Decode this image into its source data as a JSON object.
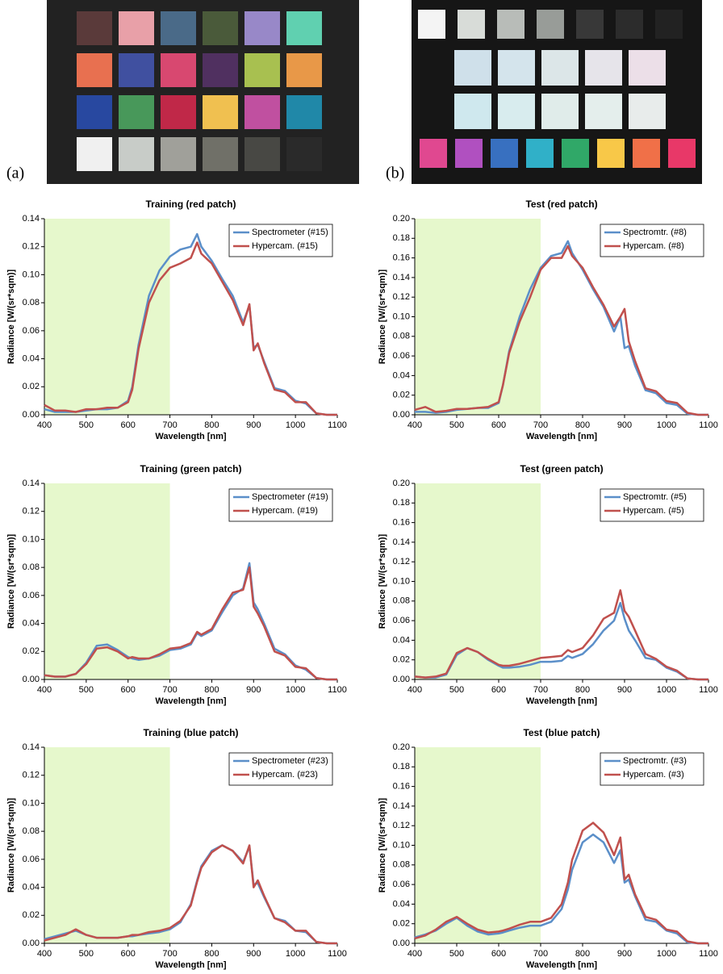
{
  "figure": {
    "label_a": "(a)",
    "label_b": "(b)"
  },
  "chart_data": [
    {
      "type": "line",
      "title": "Training (red patch)",
      "x_label": "Wavelength [nm]",
      "y_label": "Radiance [W/(sr*sqm)]",
      "shaded_range": [
        400,
        700
      ],
      "shaded_color": "#e6f8cc",
      "legend": "upper right",
      "x": [
        400,
        425,
        450,
        475,
        500,
        525,
        550,
        575,
        600,
        610,
        625,
        650,
        675,
        700,
        725,
        750,
        765,
        775,
        800,
        825,
        850,
        875,
        890,
        900,
        910,
        925,
        950,
        975,
        1000,
        1025,
        1050,
        1075,
        1100
      ],
      "series": [
        {
          "name": "Spectrometer (#15)",
          "color": "#5b8fc9",
          "values": [
            0.004,
            0.002,
            0.002,
            0.002,
            0.003,
            0.004,
            0.004,
            0.005,
            0.01,
            0.02,
            0.05,
            0.085,
            0.103,
            0.113,
            0.118,
            0.12,
            0.129,
            0.12,
            0.11,
            0.097,
            0.085,
            0.066,
            0.078,
            0.048,
            0.05,
            0.038,
            0.019,
            0.017,
            0.01,
            0.008,
            0.001,
            0,
            0
          ]
        },
        {
          "name": "Hypercam. (#15)",
          "color": "#c0504d",
          "values": [
            0.007,
            0.003,
            0.003,
            0.002,
            0.004,
            0.004,
            0.005,
            0.005,
            0.009,
            0.018,
            0.047,
            0.08,
            0.096,
            0.105,
            0.108,
            0.112,
            0.123,
            0.115,
            0.108,
            0.095,
            0.082,
            0.064,
            0.079,
            0.046,
            0.051,
            0.037,
            0.018,
            0.016,
            0.009,
            0.009,
            0.001,
            0,
            0
          ]
        }
      ],
      "xlim": [
        400,
        1100
      ],
      "xticks": [
        400,
        500,
        600,
        700,
        800,
        900,
        1000,
        1100
      ],
      "ylim": [
        0,
        0.14
      ],
      "yticks": [
        {
          "value": 0,
          "label": "0.00"
        },
        {
          "value": 0.02,
          "label": "0.02"
        },
        {
          "value": 0.04,
          "label": "0.04"
        },
        {
          "value": 0.06,
          "label": "0.06"
        },
        {
          "value": 0.08,
          "label": "0.08"
        },
        {
          "value": 0.1,
          "label": "0.10"
        },
        {
          "value": 0.12,
          "label": "0.12"
        },
        {
          "value": 0.14,
          "label": "0.14"
        }
      ]
    },
    {
      "type": "line",
      "title": "Test (red patch)",
      "x_label": "Wavelength [nm]",
      "y_label": "Radiance [W/(sr*sqm)]",
      "shaded_range": [
        400,
        700
      ],
      "shaded_color": "#e6f8cc",
      "legend": "upper right",
      "x": [
        400,
        425,
        450,
        475,
        500,
        525,
        550,
        575,
        600,
        610,
        625,
        650,
        675,
        700,
        725,
        750,
        765,
        775,
        800,
        825,
        850,
        875,
        890,
        900,
        910,
        925,
        950,
        975,
        1000,
        1025,
        1050,
        1075,
        1100
      ],
      "series": [
        {
          "name": "Spectromtr. (#8)",
          "color": "#5b8fc9",
          "values": [
            0.003,
            0.003,
            0.002,
            0.003,
            0.005,
            0.006,
            0.007,
            0.007,
            0.012,
            0.03,
            0.065,
            0.1,
            0.128,
            0.15,
            0.162,
            0.165,
            0.177,
            0.165,
            0.148,
            0.128,
            0.11,
            0.085,
            0.1,
            0.068,
            0.07,
            0.05,
            0.025,
            0.022,
            0.012,
            0.01,
            0.001,
            0,
            0
          ]
        },
        {
          "name": "Hypercam. (#8)",
          "color": "#c0504d",
          "values": [
            0.005,
            0.008,
            0.003,
            0.004,
            0.006,
            0.006,
            0.007,
            0.008,
            0.013,
            0.03,
            0.063,
            0.095,
            0.12,
            0.148,
            0.16,
            0.16,
            0.172,
            0.162,
            0.15,
            0.13,
            0.112,
            0.09,
            0.1,
            0.108,
            0.075,
            0.055,
            0.027,
            0.024,
            0.014,
            0.012,
            0.002,
            0,
            0
          ]
        }
      ],
      "xlim": [
        400,
        1100
      ],
      "xticks": [
        400,
        500,
        600,
        700,
        800,
        900,
        1000,
        1100
      ],
      "ylim": [
        0,
        0.2
      ],
      "yticks": [
        {
          "value": 0,
          "label": "0.00"
        },
        {
          "value": 0.02,
          "label": "0.02"
        },
        {
          "value": 0.04,
          "label": "0.04"
        },
        {
          "value": 0.06,
          "label": "0.06"
        },
        {
          "value": 0.08,
          "label": "0.08"
        },
        {
          "value": 0.1,
          "label": "0.10"
        },
        {
          "value": 0.12,
          "label": "0.12"
        },
        {
          "value": 0.14,
          "label": "0.14"
        },
        {
          "value": 0.16,
          "label": "0.16"
        },
        {
          "value": 0.18,
          "label": "0.18"
        },
        {
          "value": 0.2,
          "label": "0.20"
        }
      ]
    },
    {
      "type": "line",
      "title": "Training (green patch)",
      "x_label": "Wavelength [nm]",
      "y_label": "Radiance [W/(sr*sqm)]",
      "shaded_range": [
        400,
        700
      ],
      "shaded_color": "#e6f8cc",
      "legend": "upper right",
      "x": [
        400,
        425,
        450,
        475,
        500,
        525,
        550,
        575,
        600,
        610,
        625,
        650,
        675,
        700,
        725,
        750,
        765,
        775,
        800,
        825,
        850,
        875,
        890,
        900,
        910,
        925,
        950,
        975,
        1000,
        1025,
        1050,
        1075,
        1100
      ],
      "series": [
        {
          "name": "Spectrometer (#19)",
          "color": "#5b8fc9",
          "values": [
            0.003,
            0.002,
            0.002,
            0.004,
            0.012,
            0.024,
            0.025,
            0.021,
            0.016,
            0.015,
            0.014,
            0.015,
            0.017,
            0.021,
            0.022,
            0.025,
            0.033,
            0.031,
            0.035,
            0.048,
            0.06,
            0.065,
            0.083,
            0.055,
            0.05,
            0.04,
            0.022,
            0.018,
            0.01,
            0.007,
            0.001,
            0,
            0
          ]
        },
        {
          "name": "Hypercam. (#19)",
          "color": "#c0504d",
          "values": [
            0.003,
            0.002,
            0.002,
            0.004,
            0.011,
            0.022,
            0.023,
            0.02,
            0.015,
            0.016,
            0.015,
            0.015,
            0.018,
            0.022,
            0.023,
            0.026,
            0.034,
            0.032,
            0.036,
            0.05,
            0.062,
            0.064,
            0.08,
            0.052,
            0.047,
            0.038,
            0.02,
            0.017,
            0.009,
            0.008,
            0.001,
            0,
            0
          ]
        }
      ],
      "xlim": [
        400,
        1100
      ],
      "xticks": [
        400,
        500,
        600,
        700,
        800,
        900,
        1000,
        1100
      ],
      "ylim": [
        0,
        0.14
      ],
      "yticks": [
        {
          "value": 0,
          "label": "0.00"
        },
        {
          "value": 0.02,
          "label": "0.02"
        },
        {
          "value": 0.04,
          "label": "0.04"
        },
        {
          "value": 0.06,
          "label": "0.06"
        },
        {
          "value": 0.08,
          "label": "0.08"
        },
        {
          "value": 0.1,
          "label": "0.10"
        },
        {
          "value": 0.12,
          "label": "0.12"
        },
        {
          "value": 0.14,
          "label": "0.14"
        }
      ]
    },
    {
      "type": "line",
      "title": "Test (green patch)",
      "x_label": "Wavelength [nm]",
      "y_label": "Radiance [W/(sr*sqm)]",
      "shaded_range": [
        400,
        700
      ],
      "shaded_color": "#e6f8cc",
      "legend": "upper right",
      "x": [
        400,
        425,
        450,
        475,
        500,
        525,
        550,
        575,
        600,
        610,
        625,
        650,
        675,
        700,
        725,
        750,
        765,
        775,
        800,
        825,
        850,
        875,
        890,
        900,
        910,
        925,
        950,
        975,
        1000,
        1025,
        1050,
        1075,
        1100
      ],
      "series": [
        {
          "name": "Spectromtr. (#5)",
          "color": "#5b8fc9",
          "values": [
            0.003,
            0.002,
            0.002,
            0.005,
            0.025,
            0.032,
            0.028,
            0.02,
            0.014,
            0.012,
            0.012,
            0.013,
            0.015,
            0.018,
            0.018,
            0.019,
            0.024,
            0.022,
            0.026,
            0.036,
            0.05,
            0.06,
            0.078,
            0.062,
            0.05,
            0.04,
            0.022,
            0.02,
            0.012,
            0.008,
            0.001,
            0,
            0
          ]
        },
        {
          "name": "Hypercam. (#5)",
          "color": "#c0504d",
          "values": [
            0.003,
            0.002,
            0.003,
            0.006,
            0.027,
            0.032,
            0.028,
            0.021,
            0.015,
            0.014,
            0.014,
            0.016,
            0.019,
            0.022,
            0.023,
            0.024,
            0.03,
            0.028,
            0.032,
            0.045,
            0.062,
            0.068,
            0.091,
            0.07,
            0.064,
            0.05,
            0.026,
            0.021,
            0.013,
            0.009,
            0.001,
            0,
            0
          ]
        }
      ],
      "xlim": [
        400,
        1100
      ],
      "xticks": [
        400,
        500,
        600,
        700,
        800,
        900,
        1000,
        1100
      ],
      "ylim": [
        0,
        0.2
      ],
      "yticks": [
        {
          "value": 0,
          "label": "0.00"
        },
        {
          "value": 0.02,
          "label": "0.02"
        },
        {
          "value": 0.04,
          "label": "0.04"
        },
        {
          "value": 0.06,
          "label": "0.06"
        },
        {
          "value": 0.08,
          "label": "0.08"
        },
        {
          "value": 0.1,
          "label": "0.10"
        },
        {
          "value": 0.12,
          "label": "0.12"
        },
        {
          "value": 0.14,
          "label": "0.14"
        },
        {
          "value": 0.16,
          "label": "0.16"
        },
        {
          "value": 0.18,
          "label": "0.18"
        },
        {
          "value": 0.2,
          "label": "0.20"
        }
      ]
    },
    {
      "type": "line",
      "title": "Training (blue patch)",
      "x_label": "Wavelength [nm]",
      "y_label": "Radiance [W/(sr*sqm)]",
      "shaded_range": [
        400,
        700
      ],
      "shaded_color": "#e6f8cc",
      "legend": "upper right",
      "x": [
        400,
        425,
        450,
        475,
        500,
        525,
        550,
        575,
        600,
        610,
        625,
        650,
        675,
        700,
        725,
        750,
        765,
        775,
        800,
        825,
        850,
        875,
        890,
        900,
        910,
        925,
        950,
        975,
        1000,
        1025,
        1050,
        1075,
        1100
      ],
      "series": [
        {
          "name": "Spectrometer (#23)",
          "color": "#5b8fc9",
          "values": [
            0.003,
            0.005,
            0.007,
            0.009,
            0.006,
            0.004,
            0.004,
            0.004,
            0.005,
            0.005,
            0.006,
            0.007,
            0.008,
            0.01,
            0.015,
            0.028,
            0.045,
            0.055,
            0.066,
            0.07,
            0.066,
            0.058,
            0.069,
            0.042,
            0.043,
            0.033,
            0.018,
            0.016,
            0.009,
            0.008,
            0.001,
            0,
            0
          ]
        },
        {
          "name": "Hypercam. (#23)",
          "color": "#c0504d",
          "values": [
            0.002,
            0.004,
            0.006,
            0.01,
            0.006,
            0.004,
            0.004,
            0.004,
            0.005,
            0.006,
            0.006,
            0.008,
            0.009,
            0.011,
            0.016,
            0.027,
            0.044,
            0.054,
            0.065,
            0.07,
            0.066,
            0.057,
            0.07,
            0.04,
            0.045,
            0.034,
            0.018,
            0.015,
            0.009,
            0.009,
            0.001,
            0,
            0
          ]
        }
      ],
      "xlim": [
        400,
        1100
      ],
      "xticks": [
        400,
        500,
        600,
        700,
        800,
        900,
        1000,
        1100
      ],
      "ylim": [
        0,
        0.14
      ],
      "yticks": [
        {
          "value": 0,
          "label": "0.00"
        },
        {
          "value": 0.02,
          "label": "0.02"
        },
        {
          "value": 0.04,
          "label": "0.04"
        },
        {
          "value": 0.06,
          "label": "0.06"
        },
        {
          "value": 0.08,
          "label": "0.08"
        },
        {
          "value": 0.1,
          "label": "0.10"
        },
        {
          "value": 0.12,
          "label": "0.12"
        },
        {
          "value": 0.14,
          "label": "0.14"
        }
      ]
    },
    {
      "type": "line",
      "title": "Test (blue patch)",
      "x_label": "Wavelength [nm]",
      "y_label": "Radiance [W/(sr*sqm)]",
      "shaded_range": [
        400,
        700
      ],
      "shaded_color": "#e6f8cc",
      "legend": "upper right",
      "x": [
        400,
        425,
        450,
        475,
        500,
        525,
        550,
        575,
        600,
        610,
        625,
        650,
        675,
        700,
        725,
        750,
        765,
        775,
        800,
        825,
        850,
        875,
        890,
        900,
        910,
        925,
        950,
        975,
        1000,
        1025,
        1050,
        1075,
        1100
      ],
      "series": [
        {
          "name": "Spectromtr. (#3)",
          "color": "#5b8fc9",
          "values": [
            0.006,
            0.009,
            0.013,
            0.02,
            0.026,
            0.018,
            0.012,
            0.009,
            0.01,
            0.011,
            0.013,
            0.016,
            0.018,
            0.018,
            0.022,
            0.035,
            0.055,
            0.075,
            0.103,
            0.111,
            0.103,
            0.082,
            0.095,
            0.062,
            0.065,
            0.048,
            0.024,
            0.022,
            0.013,
            0.01,
            0.001,
            0,
            0
          ]
        },
        {
          "name": "Hypercam. (#3)",
          "color": "#c0504d",
          "values": [
            0.005,
            0.008,
            0.014,
            0.022,
            0.027,
            0.02,
            0.014,
            0.011,
            0.012,
            0.013,
            0.015,
            0.019,
            0.022,
            0.022,
            0.026,
            0.04,
            0.062,
            0.085,
            0.115,
            0.123,
            0.113,
            0.09,
            0.108,
            0.065,
            0.07,
            0.05,
            0.027,
            0.024,
            0.014,
            0.012,
            0.002,
            0,
            0
          ]
        }
      ],
      "xlim": [
        400,
        1100
      ],
      "xticks": [
        400,
        500,
        600,
        700,
        800,
        900,
        1000,
        1100
      ],
      "ylim": [
        0,
        0.2
      ],
      "yticks": [
        {
          "value": 0,
          "label": "0.00"
        },
        {
          "value": 0.02,
          "label": "0.02"
        },
        {
          "value": 0.04,
          "label": "0.04"
        },
        {
          "value": 0.06,
          "label": "0.06"
        },
        {
          "value": 0.08,
          "label": "0.08"
        },
        {
          "value": 0.1,
          "label": "0.10"
        },
        {
          "value": 0.12,
          "label": "0.12"
        },
        {
          "value": 0.14,
          "label": "0.14"
        },
        {
          "value": 0.16,
          "label": "0.16"
        },
        {
          "value": 0.18,
          "label": "0.18"
        },
        {
          "value": 0.2,
          "label": "0.20"
        }
      ]
    }
  ]
}
